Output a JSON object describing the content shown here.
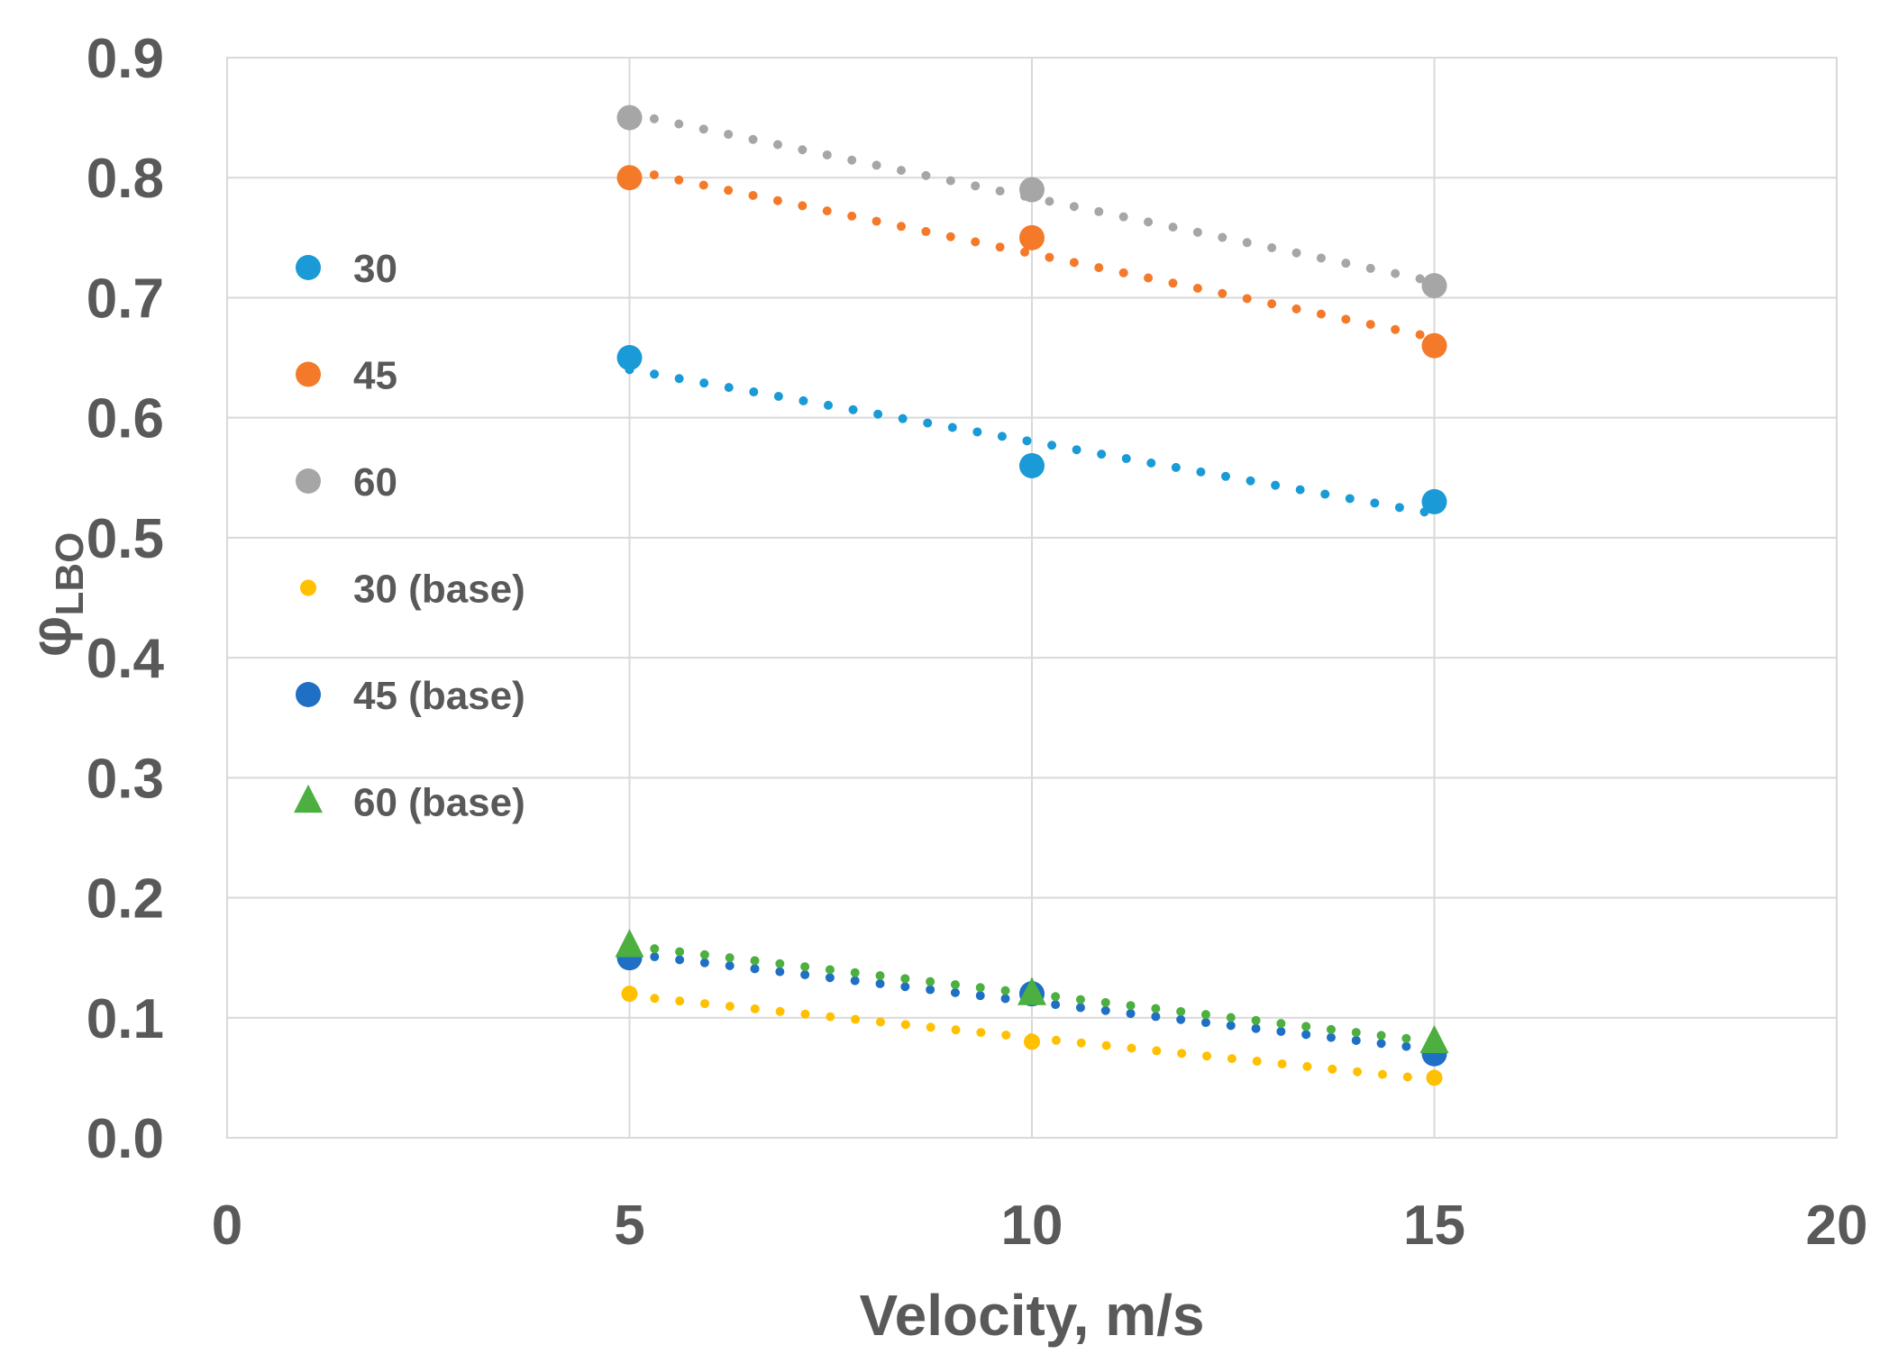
{
  "chart_data": {
    "type": "scatter",
    "title": "",
    "xlabel": "Velocity, m/s",
    "ylabel": "φ",
    "ylabel_subscript": "LBO",
    "xlim": [
      0,
      20
    ],
    "ylim": [
      0.0,
      0.9
    ],
    "x_ticks": [
      0,
      5,
      10,
      15,
      20
    ],
    "x_tick_labels": [
      "0",
      "5",
      "10",
      "15",
      "20"
    ],
    "y_ticks": [
      0.0,
      0.1,
      0.2,
      0.3,
      0.4,
      0.5,
      0.6,
      0.7,
      0.8,
      0.9
    ],
    "y_tick_labels": [
      "0.0",
      "0.1",
      "0.2",
      "0.3",
      "0.4",
      "0.5",
      "0.6",
      "0.7",
      "0.8",
      "0.9"
    ],
    "grid": true,
    "legend_position": "left",
    "x": [
      5,
      10,
      15
    ],
    "series": [
      {
        "name": "30",
        "values": [
          0.65,
          0.56,
          0.53
        ],
        "color": "#1a9ad6",
        "marker": "circle",
        "trendline": "linear"
      },
      {
        "name": "45",
        "values": [
          0.8,
          0.75,
          0.66
        ],
        "color": "#f47a2a",
        "marker": "circle",
        "trendline": "linear"
      },
      {
        "name": "60",
        "values": [
          0.85,
          0.79,
          0.71
        ],
        "color": "#a6a6a6",
        "marker": "circle",
        "trendline": "linear"
      },
      {
        "name": "30 (base)",
        "values": [
          0.12,
          0.08,
          0.05
        ],
        "color": "#ffc000",
        "marker": "small-circle",
        "trendline": "linear"
      },
      {
        "name": "45 (base)",
        "values": [
          0.15,
          0.12,
          0.07
        ],
        "color": "#1f6fc5",
        "marker": "circle",
        "trendline": "linear"
      },
      {
        "name": "60 (base)",
        "values": [
          0.16,
          0.12,
          0.08
        ],
        "color": "#4caf3f",
        "marker": "triangle",
        "trendline": "linear"
      }
    ]
  }
}
